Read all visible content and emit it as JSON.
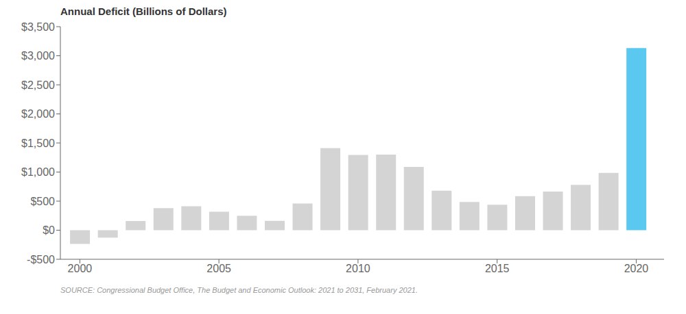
{
  "chart_data": {
    "type": "bar",
    "title": "Annual Deficit (Billions of Dollars)",
    "annotations": [
      "SOURCE: Congressional Budget Office, The Budget and Economic Outlook: 2021 to 2031, February 2021."
    ],
    "x": [
      2000,
      2001,
      2002,
      2003,
      2004,
      2005,
      2006,
      2007,
      2008,
      2009,
      2010,
      2011,
      2012,
      2013,
      2014,
      2015,
      2016,
      2017,
      2018,
      2019,
      2020
    ],
    "values": [
      -236,
      -128,
      158,
      378,
      413,
      318,
      248,
      161,
      459,
      1413,
      1294,
      1300,
      1087,
      680,
      485,
      438,
      585,
      665,
      779,
      984,
      3132
    ],
    "colors": [
      "#d4d4d4",
      "#d4d4d4",
      "#d4d4d4",
      "#d4d4d4",
      "#d4d4d4",
      "#d4d4d4",
      "#d4d4d4",
      "#d4d4d4",
      "#d4d4d4",
      "#d4d4d4",
      "#d4d4d4",
      "#d4d4d4",
      "#d4d4d4",
      "#d4d4d4",
      "#d4d4d4",
      "#d4d4d4",
      "#d4d4d4",
      "#d4d4d4",
      "#d4d4d4",
      "#d4d4d4",
      "#5bc8f0"
    ],
    "xlim": [
      1999.3,
      2021.0
    ],
    "xticks": [
      2000,
      2005,
      2010,
      2015,
      2020
    ],
    "ylim": [
      -500,
      3500
    ],
    "yticks": [
      {
        "value": -500,
        "label": "-$500"
      },
      {
        "value": 0,
        "label": "$0"
      },
      {
        "value": 500,
        "label": "$500"
      },
      {
        "value": 1000,
        "label": "$1,000"
      },
      {
        "value": 1500,
        "label": "$1,500"
      },
      {
        "value": 2000,
        "label": "$2,000"
      },
      {
        "value": 2500,
        "label": "$2,500"
      },
      {
        "value": 3000,
        "label": "$3,000"
      },
      {
        "value": 3500,
        "label": "$3,500"
      }
    ],
    "grid": false
  }
}
